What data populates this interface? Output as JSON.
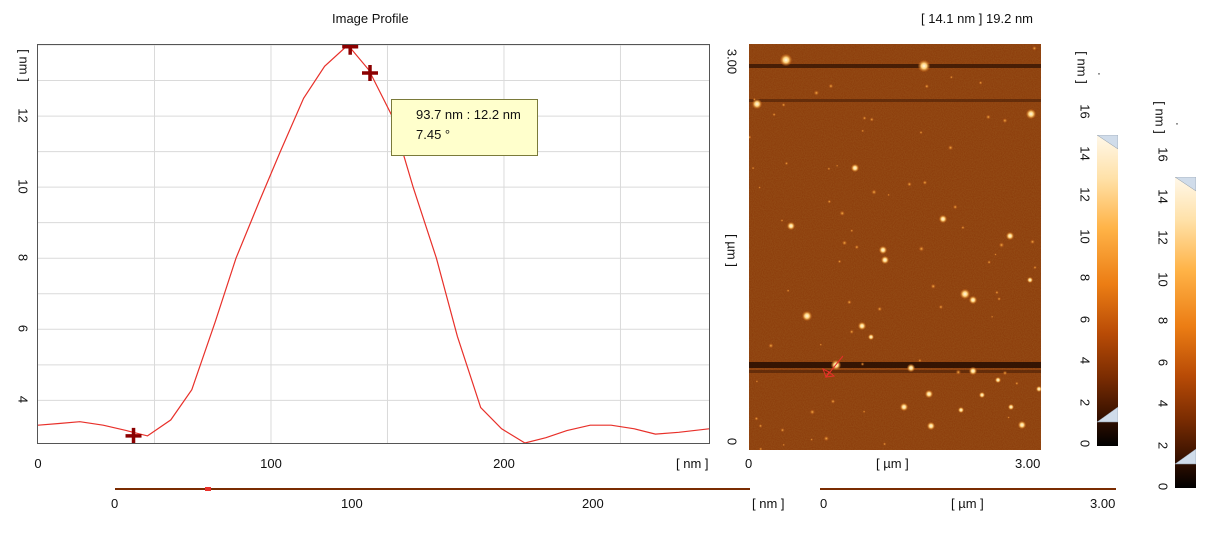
{
  "profile": {
    "title": "Image Profile",
    "y_unit": "[ nm ]",
    "x_unit": "[ nm ]",
    "y_ticks": [
      "4",
      "6",
      "8",
      "10",
      "12"
    ],
    "x_ticks": [
      "0",
      "100",
      "200"
    ],
    "tooltip": {
      "line1": "93.7 nm : 12.2 nm",
      "line2": "7.45 °"
    },
    "line_color": "#e8302a",
    "cursor_color": "#8b0000"
  },
  "image": {
    "range_label": "[ 14.1 nm ] 19.2 nm",
    "y_axis_top": "3.00",
    "y_axis_bottom": "0",
    "y_unit": "[ µm ]",
    "x_axis_left": "0",
    "x_axis_right": "3.00",
    "x_unit": "[ µm ]"
  },
  "colorbar1": {
    "unit": "[ nm ]",
    "ticks": [
      "16",
      "14",
      "12",
      "10",
      "8",
      "6",
      "4",
      "2",
      "0"
    ]
  },
  "colorbar2": {
    "unit": "[ nm ]",
    "ticks": [
      "16",
      "14",
      "12",
      "10",
      "8",
      "6",
      "4",
      "2",
      "0"
    ]
  },
  "bottom_scroll": {
    "ticks": [
      "0",
      "100",
      "200"
    ],
    "unit": "[ nm ]",
    "right_left": "0",
    "right_unit": "[ µm ]",
    "right_right": "3.00"
  },
  "chart_data": {
    "type": "line",
    "title": "Image Profile",
    "xlabel": "[ nm ]",
    "ylabel": "[ nm ]",
    "xlim": [
      0,
      288
    ],
    "ylim": [
      2.8,
      14.0
    ],
    "x_ticks": [
      0,
      100,
      200
    ],
    "y_ticks": [
      4,
      6,
      8,
      10,
      12
    ],
    "grid": true,
    "series": [
      {
        "x": [
          0,
          9,
          18,
          28,
          38,
          47,
          57,
          66,
          76,
          85,
          95,
          104,
          114,
          123,
          133,
          142,
          152,
          161,
          171,
          180,
          190,
          199,
          209,
          218,
          227,
          237,
          246,
          256,
          265,
          275,
          288
        ],
        "y": [
          3.3,
          3.35,
          3.4,
          3.3,
          3.15,
          3.0,
          3.45,
          4.3,
          6.2,
          8.0,
          9.6,
          11.0,
          12.5,
          13.4,
          14.0,
          13.3,
          12.0,
          10.0,
          8.0,
          5.8,
          3.8,
          3.2,
          2.8,
          2.95,
          3.15,
          3.3,
          3.3,
          3.2,
          3.05,
          3.1,
          3.2
        ]
      }
    ],
    "markers": [
      {
        "x": 41,
        "y": 3.0
      },
      {
        "x": 134,
        "y": 13.95
      }
    ]
  }
}
